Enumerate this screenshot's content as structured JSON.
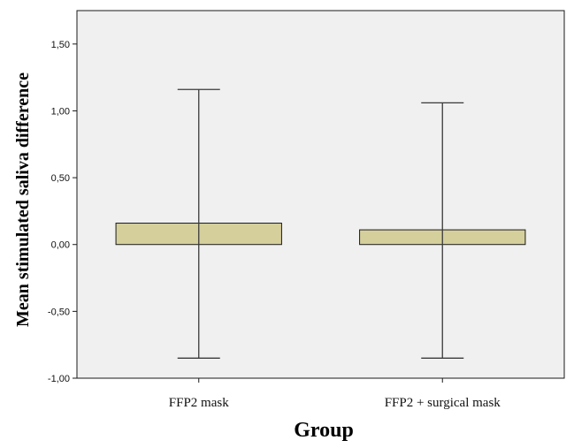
{
  "chart_data": {
    "type": "bar",
    "title": "",
    "xlabel": "Group",
    "ylabel": "Mean stimulated saliva difference",
    "categories": [
      "FFP2 mask",
      "FFP2 + surgical mask"
    ],
    "values": [
      0.16,
      0.11
    ],
    "error_bars": [
      {
        "low": -0.85,
        "high": 1.16
      },
      {
        "low": -0.85,
        "high": 1.06
      }
    ],
    "ylim": [
      -1.0,
      1.75
    ],
    "yticks": [
      -1.0,
      -0.5,
      0.0,
      0.5,
      1.0,
      1.5
    ],
    "ytick_labels": [
      "-1,00",
      "-0,50",
      "0,00",
      "0,50",
      "1,00",
      "1,50"
    ],
    "grid": false,
    "legend": "none",
    "colors": {
      "plot_background": "#f0f0f0",
      "bar_fill": "#d5cf9c",
      "bar_stroke": "#1a1a1a",
      "error_bar": "#3a3a3a",
      "axis": "#1a1a1a"
    }
  }
}
